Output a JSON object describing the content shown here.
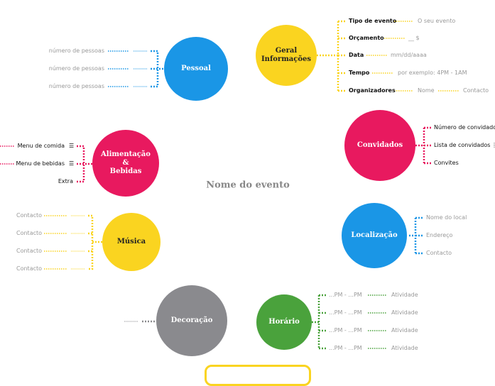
{
  "colors": {
    "blue": "#1a96e6",
    "yellow": "#fad420",
    "pink": "#e8195f",
    "gray": "#8a8a8e",
    "green": "#4aa23c"
  },
  "center": "Nome do evento",
  "pessoal": {
    "title": "Pessoal",
    "items": [
      "número de pessoas",
      "número de pessoas",
      "número de pessoas"
    ]
  },
  "geral": {
    "title_1": "Geral",
    "title_2": "Informações",
    "items": [
      {
        "label": "Tipo de evento",
        "value": "O seu evento"
      },
      {
        "label": "Orçamento",
        "value": "__ $"
      },
      {
        "label": "Data",
        "value": "mm/dd/aaaa"
      },
      {
        "label": "Tempo",
        "value": "por exemplo: 4PM - 1AM"
      },
      {
        "label": "Organizadores",
        "value": "Nome",
        "value2": "Contacto"
      }
    ]
  },
  "convidados": {
    "title": "Convidados",
    "items": [
      "Número de convidados",
      "Lista de convidados",
      "Convites"
    ],
    "more_icon": "⋮"
  },
  "alimentacao": {
    "title_1": "Alimentação",
    "title_2": "&",
    "title_3": "Bebidas",
    "items": [
      "Menu de comida",
      "Menu de bebidas",
      "Extra"
    ],
    "list_icon": "☰"
  },
  "localizacao": {
    "title": "Localização",
    "items": [
      "Nome do local",
      "Endereço",
      "Contacto"
    ]
  },
  "musica": {
    "title": "Música",
    "items": [
      "Contacto",
      "Contacto",
      "Contacto",
      "Contacto"
    ]
  },
  "decoracao": {
    "title": "Decoração"
  },
  "horario": {
    "title": "Horário",
    "items": [
      {
        "time": "...PM - ...PM",
        "activity": "Atividade"
      },
      {
        "time": "...PM - ...PM",
        "activity": "Atividade"
      },
      {
        "time": "...PM - ...PM",
        "activity": "Atividade"
      },
      {
        "time": "...PM - ...PM",
        "activity": "Atividade"
      }
    ]
  }
}
